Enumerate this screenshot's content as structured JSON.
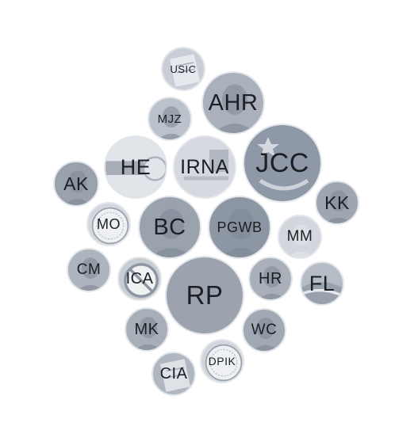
{
  "bubbles": [
    {
      "id": "usic",
      "label": "USIC",
      "fill": "#c9ced6",
      "style": "doc"
    },
    {
      "id": "ahr",
      "label": "AHR",
      "fill": "#aab1bc",
      "style": "face"
    },
    {
      "id": "mjz",
      "label": "MJZ",
      "fill": "#bcc2cb",
      "style": "face"
    },
    {
      "id": "he",
      "label": "HE",
      "fill": "#c7ccd4",
      "style": "flag"
    },
    {
      "id": "irna",
      "label": "IRNA",
      "fill": "#d6dae0",
      "style": "logo"
    },
    {
      "id": "jcc",
      "label": "JCC",
      "fill": "#8f98a6",
      "style": "logo-dark"
    },
    {
      "id": "ak",
      "label": "AK",
      "fill": "#9aa2ae",
      "style": "face"
    },
    {
      "id": "kk",
      "label": "KK",
      "fill": "#9ea6b2",
      "style": "face"
    },
    {
      "id": "mo",
      "label": "MO",
      "fill": "#d3d7dd",
      "style": "seal"
    },
    {
      "id": "bc",
      "label": "BC",
      "fill": "#9aa2ae",
      "style": "face"
    },
    {
      "id": "pgwb",
      "label": "PGWB",
      "fill": "#8d96a3",
      "style": "face"
    },
    {
      "id": "mm",
      "label": "MM",
      "fill": "#d3d7dd",
      "style": "face-light"
    },
    {
      "id": "cm",
      "label": "CM",
      "fill": "#aeb4be",
      "style": "face"
    },
    {
      "id": "ica",
      "label": "ICA",
      "fill": "#c8cdd4",
      "style": "nosign"
    },
    {
      "id": "rp",
      "label": "RP",
      "fill": "#9ca3ae",
      "style": "plain"
    },
    {
      "id": "hr",
      "label": "HR",
      "fill": "#a9b0ba",
      "style": "face"
    },
    {
      "id": "fl",
      "label": "FL",
      "fill": "#b6bcc5",
      "style": "flag-fl"
    },
    {
      "id": "mk",
      "label": "MK",
      "fill": "#a8afb9",
      "style": "face"
    },
    {
      "id": "wc",
      "label": "WC",
      "fill": "#a1a9b4",
      "style": "face"
    },
    {
      "id": "dpik",
      "label": "DPIK",
      "fill": "#d3d7dd",
      "style": "seal"
    },
    {
      "id": "cia",
      "label": "CIA",
      "fill": "#b0b7c0",
      "style": "doc"
    }
  ]
}
